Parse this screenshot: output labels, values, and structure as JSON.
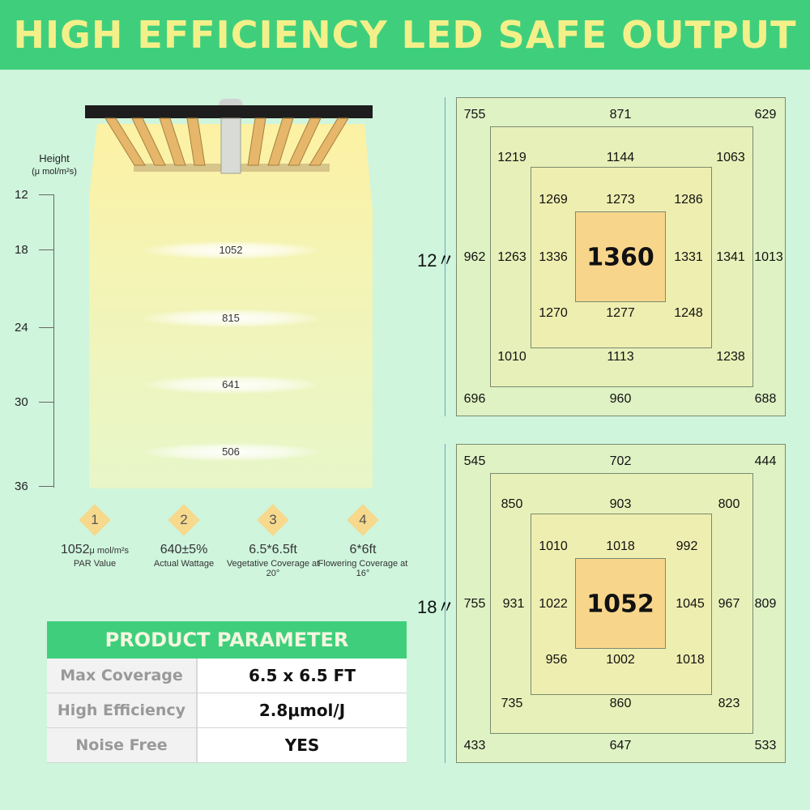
{
  "banner": {
    "title": "HIGH EFFICIENCY LED SAFE OUTPUT"
  },
  "height_axis": {
    "title": "Height",
    "unit": "(μ mol/m²s)",
    "ticks": [
      "12",
      "18",
      "24",
      "30",
      "36"
    ]
  },
  "ppfd_by_height": [
    "1052",
    "815",
    "641",
    "506"
  ],
  "features": [
    {
      "num": "1",
      "value": "1052",
      "unit": "μ mol/m²s",
      "label": "PAR Value"
    },
    {
      "num": "2",
      "value": "640±5%",
      "unit": "",
      "label": "Actual Wattage"
    },
    {
      "num": "3",
      "value": "6.5*6.5ft",
      "unit": "",
      "label": "Vegetative Coverage at 20°"
    },
    {
      "num": "4",
      "value": "6*6ft",
      "unit": "",
      "label": "Flowering Coverage at 16°"
    }
  ],
  "parameters": {
    "title": "PRODUCT PARAMETER",
    "rows": [
      {
        "name": "Max Coverage",
        "value": "6.5 x 6.5 FT"
      },
      {
        "name": "High Efficiency",
        "value": "2.8μmol/J"
      },
      {
        "name": "Noise Free",
        "value": "YES"
      }
    ]
  },
  "maps": [
    {
      "height": "12〃",
      "outer": {
        "tl": "755",
        "tc": "871",
        "tr": "629",
        "ml": "962",
        "mr": "1013",
        "bl": "696",
        "bc": "960",
        "br": "688"
      },
      "ring2": {
        "tl": "1219",
        "tc": "1144",
        "tr": "1063",
        "ml": "1263",
        "mr": "1341",
        "bl": "1010",
        "bc": "1113",
        "br": "1238"
      },
      "ring3": {
        "tl": "1269",
        "tc": "1273",
        "tr": "1286",
        "ml": "1336",
        "mr": "1331",
        "bl": "1270",
        "bc": "1277",
        "br": "1248"
      },
      "center": "1360"
    },
    {
      "height": "18〃",
      "outer": {
        "tl": "545",
        "tc": "702",
        "tr": "444",
        "ml": "755",
        "mr": "809",
        "bl": "433",
        "bc": "647",
        "br": "533"
      },
      "ring2": {
        "tl": "850",
        "tc": "903",
        "tr": "800",
        "ml": "931",
        "mr": "967",
        "bl": "735",
        "bc": "860",
        "br": "823"
      },
      "ring3": {
        "tl": "1010",
        "tc": "1018",
        "tr": "992",
        "ml": "1022",
        "mr": "1045",
        "bl": "956",
        "bc": "1002",
        "br": "1018"
      },
      "center": "1052"
    }
  ]
}
